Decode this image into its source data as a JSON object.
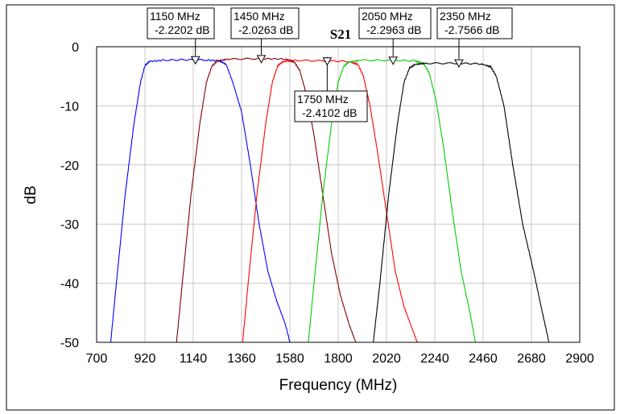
{
  "chart_data": {
    "type": "line",
    "title": "S21",
    "xlabel": "Frequency (MHz)",
    "ylabel": "dB",
    "xlim": [
      700,
      2900
    ],
    "ylim": [
      -50,
      0
    ],
    "xticks": [
      "700",
      "920",
      "1140",
      "1360",
      "1580",
      "1800",
      "2020",
      "2240",
      "2460",
      "2680",
      "2900"
    ],
    "yticks": [
      "0",
      "-10",
      "-20",
      "-30",
      "-40",
      "-50"
    ],
    "grid": true,
    "series": [
      {
        "color": "#0000ff",
        "points": [
          [
            764,
            -50
          ],
          [
            790,
            -40
          ],
          [
            830,
            -25
          ],
          [
            870,
            -13
          ],
          [
            900,
            -6
          ],
          [
            920,
            -3.2
          ],
          [
            940,
            -2.5
          ],
          [
            1000,
            -2.3
          ],
          [
            1100,
            -2.2
          ],
          [
            1200,
            -2.25
          ],
          [
            1260,
            -2.4
          ],
          [
            1290,
            -3
          ],
          [
            1320,
            -6
          ],
          [
            1360,
            -11
          ],
          [
            1400,
            -20
          ],
          [
            1440,
            -30
          ],
          [
            1480,
            -38
          ],
          [
            1520,
            -43
          ],
          [
            1560,
            -47
          ],
          [
            1580,
            -50
          ]
        ]
      },
      {
        "color": "#800000",
        "points": [
          [
            1064,
            -50
          ],
          [
            1090,
            -40
          ],
          [
            1130,
            -25
          ],
          [
            1170,
            -13
          ],
          [
            1200,
            -6
          ],
          [
            1225,
            -3.3
          ],
          [
            1250,
            -2.4
          ],
          [
            1300,
            -2.1
          ],
          [
            1450,
            -2.0
          ],
          [
            1560,
            -2.1
          ],
          [
            1600,
            -2.6
          ],
          [
            1625,
            -4
          ],
          [
            1655,
            -8
          ],
          [
            1690,
            -15
          ],
          [
            1730,
            -25
          ],
          [
            1770,
            -35
          ],
          [
            1810,
            -42
          ],
          [
            1850,
            -47
          ],
          [
            1880,
            -50
          ]
        ]
      },
      {
        "color": "#ff0000",
        "points": [
          [
            1365,
            -50
          ],
          [
            1390,
            -40
          ],
          [
            1430,
            -25
          ],
          [
            1470,
            -13
          ],
          [
            1500,
            -6
          ],
          [
            1525,
            -3.2
          ],
          [
            1550,
            -2.5
          ],
          [
            1600,
            -2.3
          ],
          [
            1750,
            -2.4
          ],
          [
            1850,
            -2.5
          ],
          [
            1890,
            -3
          ],
          [
            1915,
            -5
          ],
          [
            1945,
            -10
          ],
          [
            1980,
            -18
          ],
          [
            2020,
            -28
          ],
          [
            2060,
            -38
          ],
          [
            2100,
            -44
          ],
          [
            2140,
            -48
          ],
          [
            2160,
            -50
          ]
        ]
      },
      {
        "color": "#00cc00",
        "points": [
          [
            1664,
            -50
          ],
          [
            1690,
            -40
          ],
          [
            1730,
            -25
          ],
          [
            1770,
            -13
          ],
          [
            1800,
            -6
          ],
          [
            1825,
            -3.3
          ],
          [
            1850,
            -2.6
          ],
          [
            1900,
            -2.3
          ],
          [
            2050,
            -2.3
          ],
          [
            2150,
            -2.4
          ],
          [
            2190,
            -2.9
          ],
          [
            2215,
            -4.5
          ],
          [
            2245,
            -9
          ],
          [
            2280,
            -17
          ],
          [
            2320,
            -28
          ],
          [
            2360,
            -38
          ],
          [
            2400,
            -45
          ],
          [
            2425,
            -50
          ]
        ]
      },
      {
        "color": "#000000",
        "points": [
          [
            1960,
            -50
          ],
          [
            1990,
            -40
          ],
          [
            2030,
            -25
          ],
          [
            2070,
            -13
          ],
          [
            2100,
            -6
          ],
          [
            2125,
            -3.6
          ],
          [
            2150,
            -3.0
          ],
          [
            2200,
            -2.8
          ],
          [
            2350,
            -2.8
          ],
          [
            2450,
            -2.9
          ],
          [
            2495,
            -3.4
          ],
          [
            2520,
            -5
          ],
          [
            2555,
            -10
          ],
          [
            2595,
            -20
          ],
          [
            2640,
            -30
          ],
          [
            2690,
            -38
          ],
          [
            2730,
            -45
          ],
          [
            2760,
            -50
          ]
        ]
      }
    ],
    "markers": [
      {
        "freq": 1150,
        "db": -2.2202,
        "line1": "1150 MHz",
        "line2": "-2.2202 dB"
      },
      {
        "freq": 1450,
        "db": -2.0263,
        "line1": "1450 MHz",
        "line2": "-2.0263 dB"
      },
      {
        "freq": 1750,
        "db": -2.4102,
        "line1": "1750 MHz",
        "line2": "-2.4102 dB"
      },
      {
        "freq": 2050,
        "db": -2.2963,
        "line1": "2050 MHz",
        "line2": "-2.2963 dB"
      },
      {
        "freq": 2350,
        "db": -2.7566,
        "line1": "2350 MHz",
        "line2": "-2.7566 dB"
      }
    ]
  }
}
